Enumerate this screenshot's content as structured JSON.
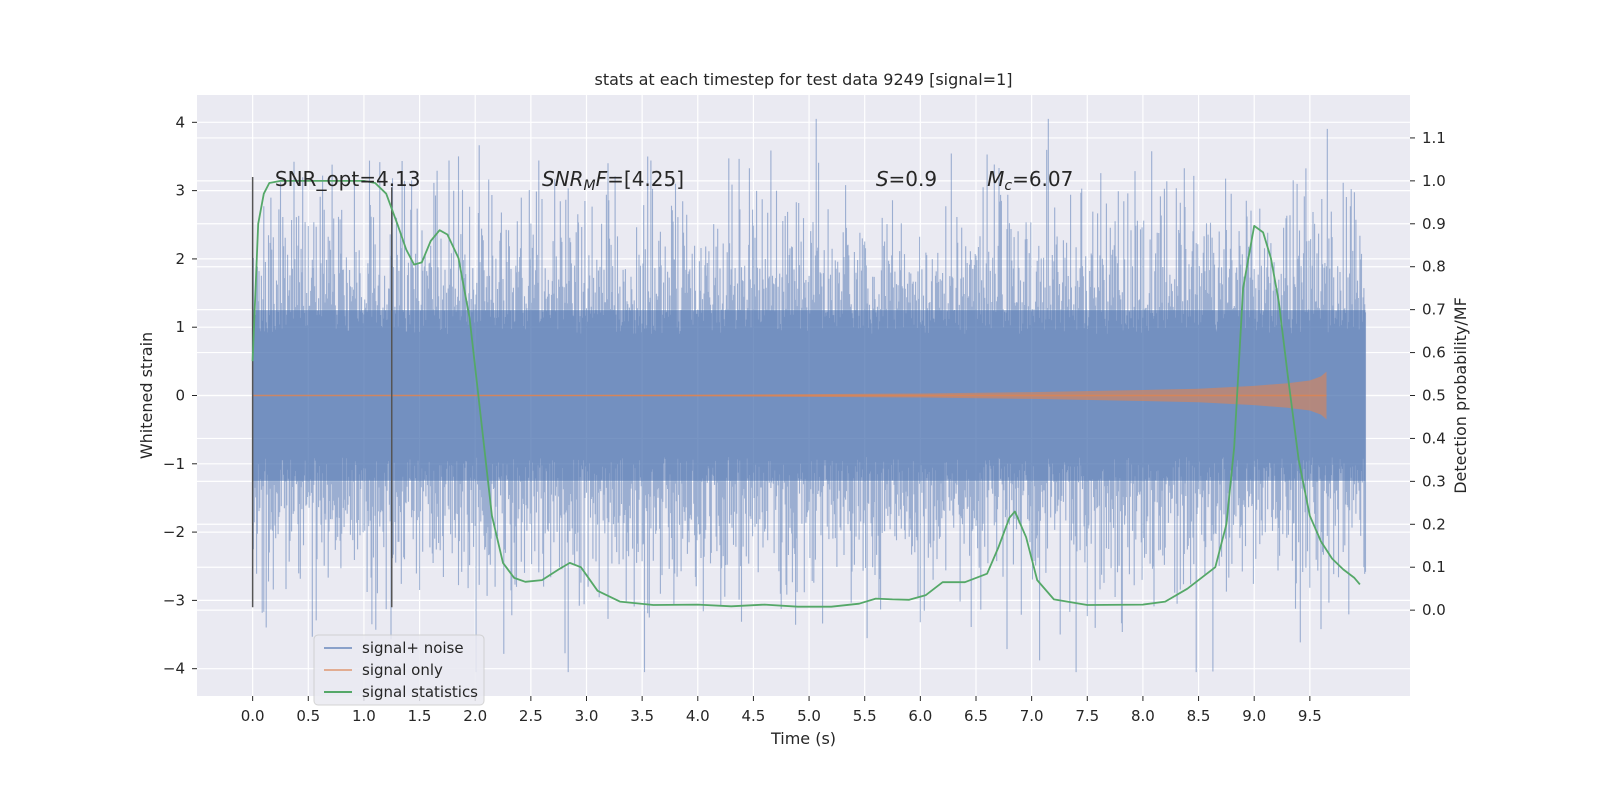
{
  "chart_data": {
    "type": "line",
    "title": "stats at each timestep for test data 9249 [signal=1]",
    "xlabel": "Time (s)",
    "ylabel_left": "Whitened strain",
    "ylabel_right": "Detection probability/MF",
    "xlim": [
      -0.5,
      10.4
    ],
    "ylim_left": [
      -4.4,
      4.4
    ],
    "ylim_right": [
      -0.2,
      1.2
    ],
    "x_ticks": [
      0.0,
      0.5,
      1.0,
      1.5,
      2.0,
      2.5,
      3.0,
      3.5,
      4.0,
      4.5,
      5.0,
      5.5,
      6.0,
      6.5,
      7.0,
      7.5,
      8.0,
      8.5,
      9.0,
      9.5
    ],
    "x_tick_labels": [
      "0.0",
      "0.5",
      "1.0",
      "1.5",
      "2.0",
      "2.5",
      "3.0",
      "3.5",
      "4.0",
      "4.5",
      "5.0",
      "5.5",
      "6.0",
      "6.5",
      "7.0",
      "7.5",
      "8.0",
      "8.5",
      "9.0",
      "9.5"
    ],
    "y_left_ticks": [
      4,
      3,
      2,
      1,
      0,
      -1,
      -2,
      -3,
      -4
    ],
    "y_left_tick_labels": [
      "4",
      "3",
      "2",
      "1",
      "0",
      "−1",
      "−2",
      "−3",
      "−4"
    ],
    "y_right_ticks": [
      1.1,
      1.0,
      0.9,
      0.8,
      0.7,
      0.6,
      0.5,
      0.4,
      0.3,
      0.2,
      0.1,
      0.0
    ],
    "y_right_tick_labels": [
      "1.1",
      "1.0",
      "0.9",
      "0.8",
      "0.7",
      "0.6",
      "0.5",
      "0.4",
      "0.3",
      "0.2",
      "0.1",
      "0.0"
    ],
    "grid": true,
    "legend_position": "lower-left",
    "colors": {
      "background": "#eaeaf2",
      "grid": "#ffffff",
      "signal_noise": "#4c72b0",
      "signal_only": "#dd8452",
      "statistics": "#55a868",
      "markers": "#555555"
    },
    "annotations": [
      {
        "id": "snr-opt",
        "text": "SNR_opt=4.13",
        "x": 0.2,
        "y": 3.2
      },
      {
        "id": "snr-mf",
        "parts": [
          {
            "t": "SNR",
            "i": true
          },
          {
            "t": "M",
            "i": true,
            "sub": true
          },
          {
            "t": "F",
            "i": true
          },
          {
            "t": "=[4.25]",
            "i": false
          }
        ],
        "x": 2.6,
        "y": 3.2
      },
      {
        "id": "spin",
        "parts": [
          {
            "t": "S",
            "i": true
          },
          {
            "t": "=0.9",
            "i": false
          }
        ],
        "x": 5.6,
        "y": 3.2
      },
      {
        "id": "chirp-mass",
        "parts": [
          {
            "t": "M",
            "i": true
          },
          {
            "t": "c",
            "i": true,
            "sub": true
          },
          {
            "t": "=6.07",
            "i": false
          }
        ],
        "x": 6.6,
        "y": 3.2
      }
    ],
    "vertical_markers": [
      {
        "x": 0.0,
        "y_top": 3.2,
        "y_bottom": -3.1
      },
      {
        "x": 1.25,
        "y_top": 3.05,
        "y_bottom": -3.1
      }
    ],
    "series": [
      {
        "name": "signal+ noise",
        "kind": "noise-band",
        "x_range": [
          0.0,
          10.0
        ],
        "core_amplitude": 1.25,
        "dense_amplitude": 2.0,
        "max_amplitude": 4.05
      },
      {
        "name": "signal only",
        "kind": "envelope",
        "x": [
          0.0,
          4.0,
          5.0,
          6.0,
          7.0,
          8.0,
          8.5,
          9.0,
          9.3,
          9.5,
          9.6,
          9.65
        ],
        "amplitude": [
          0.0,
          0.01,
          0.02,
          0.03,
          0.05,
          0.08,
          0.1,
          0.14,
          0.18,
          0.22,
          0.28,
          0.35
        ]
      },
      {
        "name": "signal statistics",
        "kind": "line",
        "x": [
          0.0,
          0.05,
          0.1,
          0.15,
          0.25,
          0.4,
          0.6,
          0.8,
          1.0,
          1.1,
          1.2,
          1.3,
          1.38,
          1.45,
          1.52,
          1.6,
          1.68,
          1.75,
          1.85,
          1.95,
          2.05,
          2.15,
          2.25,
          2.35,
          2.45,
          2.6,
          2.75,
          2.85,
          2.95,
          3.1,
          3.3,
          3.6,
          4.0,
          4.3,
          4.6,
          4.9,
          5.2,
          5.45,
          5.6,
          5.75,
          5.9,
          6.05,
          6.2,
          6.4,
          6.6,
          6.7,
          6.8,
          6.85,
          6.95,
          7.05,
          7.2,
          7.5,
          8.0,
          8.2,
          8.4,
          8.55,
          8.65,
          8.75,
          8.82,
          8.9,
          9.0,
          9.08,
          9.15,
          9.22,
          9.3,
          9.4,
          9.5,
          9.6,
          9.7,
          9.8,
          9.9,
          9.95
        ],
        "y": [
          0.58,
          0.9,
          0.97,
          0.995,
          1.0,
          1.0,
          1.0,
          1.0,
          1.0,
          0.995,
          0.97,
          0.9,
          0.84,
          0.805,
          0.81,
          0.86,
          0.885,
          0.875,
          0.82,
          0.68,
          0.45,
          0.22,
          0.11,
          0.075,
          0.066,
          0.07,
          0.095,
          0.11,
          0.1,
          0.045,
          0.02,
          0.012,
          0.013,
          0.009,
          0.013,
          0.008,
          0.008,
          0.015,
          0.027,
          0.025,
          0.024,
          0.035,
          0.065,
          0.065,
          0.085,
          0.145,
          0.215,
          0.23,
          0.17,
          0.07,
          0.025,
          0.012,
          0.013,
          0.02,
          0.05,
          0.08,
          0.1,
          0.2,
          0.38,
          0.75,
          0.895,
          0.88,
          0.82,
          0.72,
          0.55,
          0.35,
          0.22,
          0.16,
          0.12,
          0.095,
          0.075,
          0.06
        ]
      }
    ]
  }
}
